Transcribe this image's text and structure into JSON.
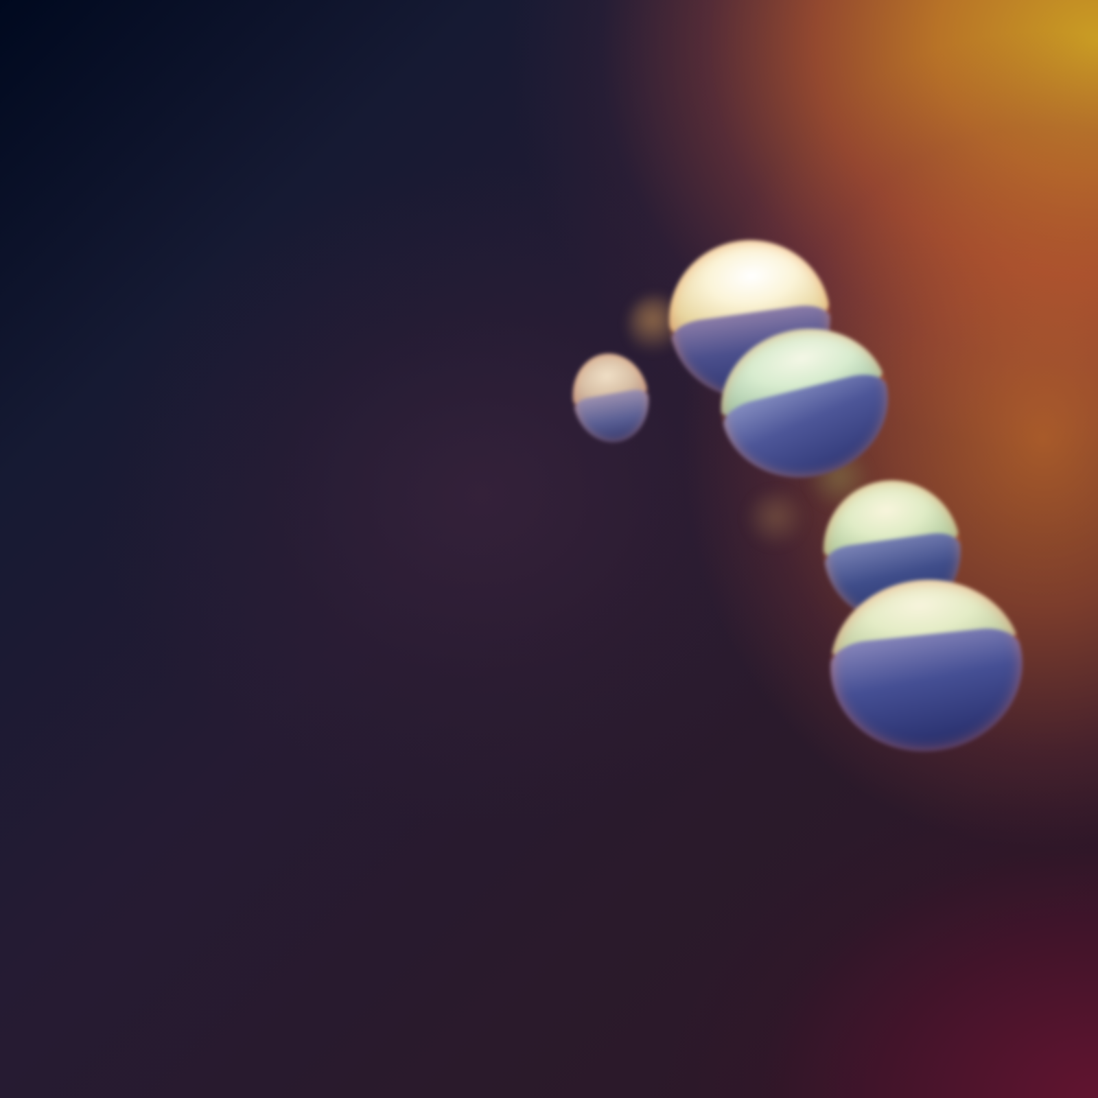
{
  "scene": {
    "kind": "abstract wallpaper",
    "colors": {
      "background_dark": "#00091f",
      "plum": "#2a1a2b",
      "amber": "#cda023",
      "orange": "#c47a26",
      "crimson": "#641430",
      "pebble_highlight": "#f6f1d8",
      "pebble_shadow": "#2c3470"
    },
    "pebbles": [
      {
        "name": "pebble-top-large"
      },
      {
        "name": "pebble-small-left"
      },
      {
        "name": "pebble-upper-middle"
      },
      {
        "name": "pebble-lower-middle"
      },
      {
        "name": "pebble-bottom-large"
      }
    ]
  }
}
